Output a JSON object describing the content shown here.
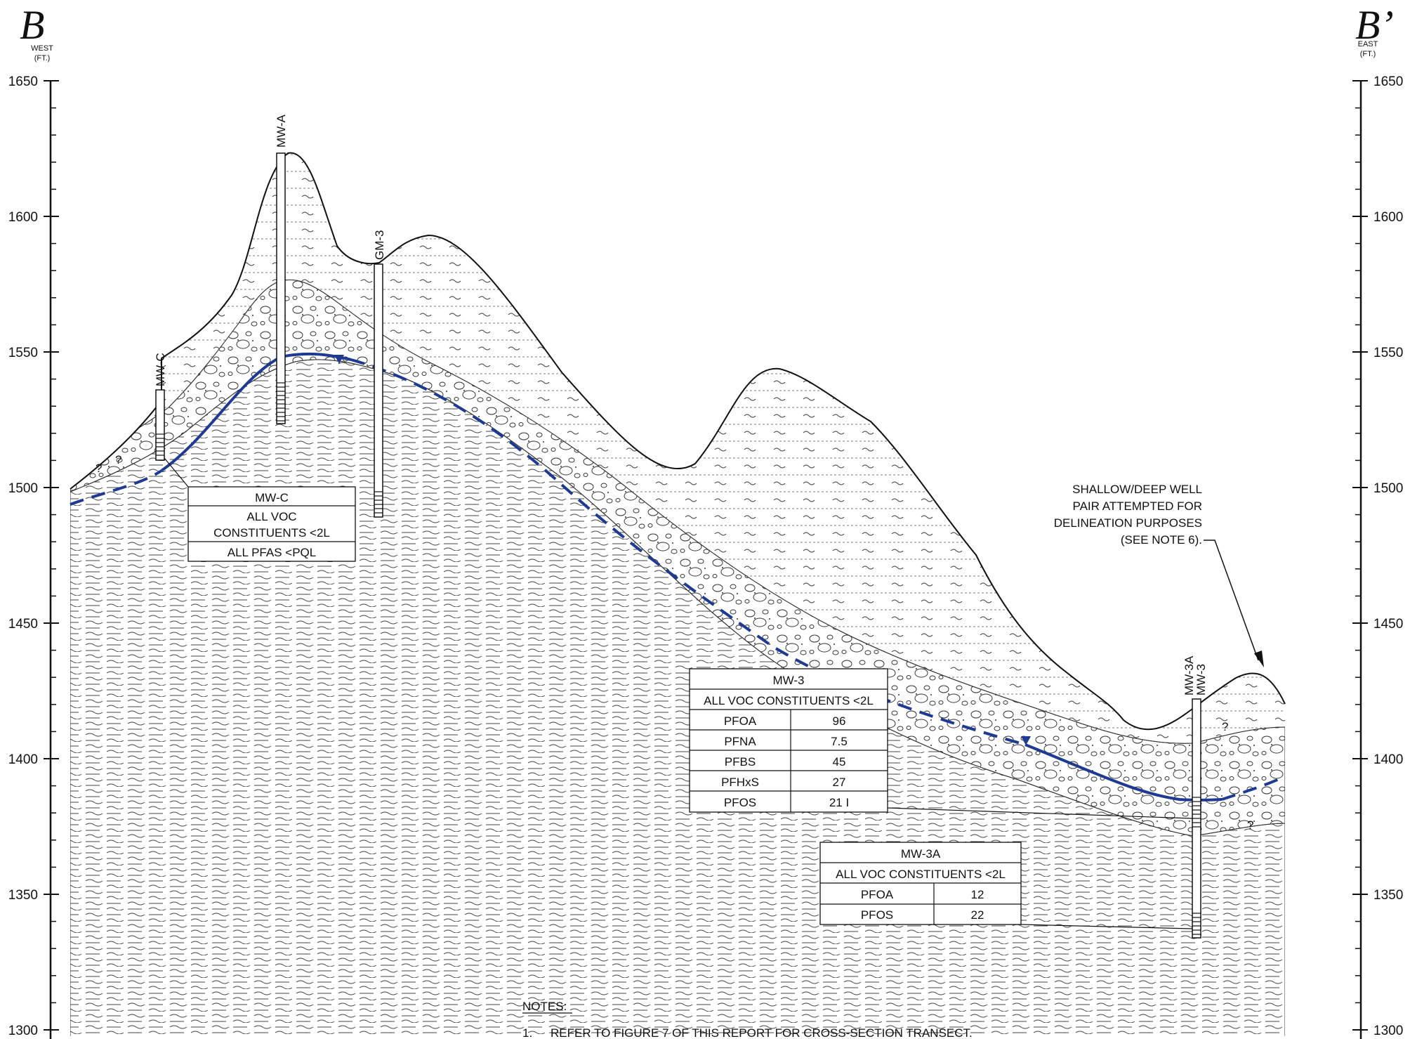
{
  "sheet": {
    "left_marker": "B",
    "left_direction": "WEST",
    "left_unit": "(FT.)",
    "right_marker": "B’",
    "right_direction": "EAST",
    "right_unit": "(FT.)",
    "elevation_ticks": [
      "1650",
      "1600",
      "1550",
      "1500",
      "1450",
      "1400",
      "1350",
      "1300"
    ]
  },
  "wells": [
    {
      "label": "MW-C"
    },
    {
      "label": "MW-A"
    },
    {
      "label": "GM-3"
    },
    {
      "label": "MW-3A"
    },
    {
      "label": "MW-3"
    }
  ],
  "tables": {
    "mwc": {
      "title": "MW-C",
      "line1": "ALL VOC",
      "line2": "CONSTITUENTS <2L",
      "line3": "ALL PFAS <PQL"
    },
    "mw3": {
      "title": "MW-3",
      "subtitle": "ALL VOC CONSTITUENTS <2L",
      "rows": [
        {
          "name": "PFOA",
          "value": "96"
        },
        {
          "name": "PFNA",
          "value": "7.5"
        },
        {
          "name": "PFBS",
          "value": "45"
        },
        {
          "name": "PFHxS",
          "value": "27"
        },
        {
          "name": "PFOS",
          "value": "21 I"
        }
      ]
    },
    "mw3a": {
      "title": "MW-3A",
      "subtitle": "ALL VOC CONSTITUENTS <2L",
      "rows": [
        {
          "name": "PFOA",
          "value": "12"
        },
        {
          "name": "PFOS",
          "value": "22"
        }
      ]
    }
  },
  "callout": {
    "line1": "SHALLOW/DEEP WELL",
    "line2": "PAIR ATTEMPTED FOR",
    "line3": "DELINEATION PURPOSES",
    "line4": "(SEE NOTE 6)."
  },
  "question_mark": "?",
  "notes": {
    "heading": "NOTES:",
    "note1_num": "1.",
    "note1_text": "REFER TO FIGURE 7 OF THIS REPORT FOR CROSS-SECTION TRANSECT."
  },
  "colors": {
    "water_table": "#1f3a93",
    "ink": "#111111"
  }
}
